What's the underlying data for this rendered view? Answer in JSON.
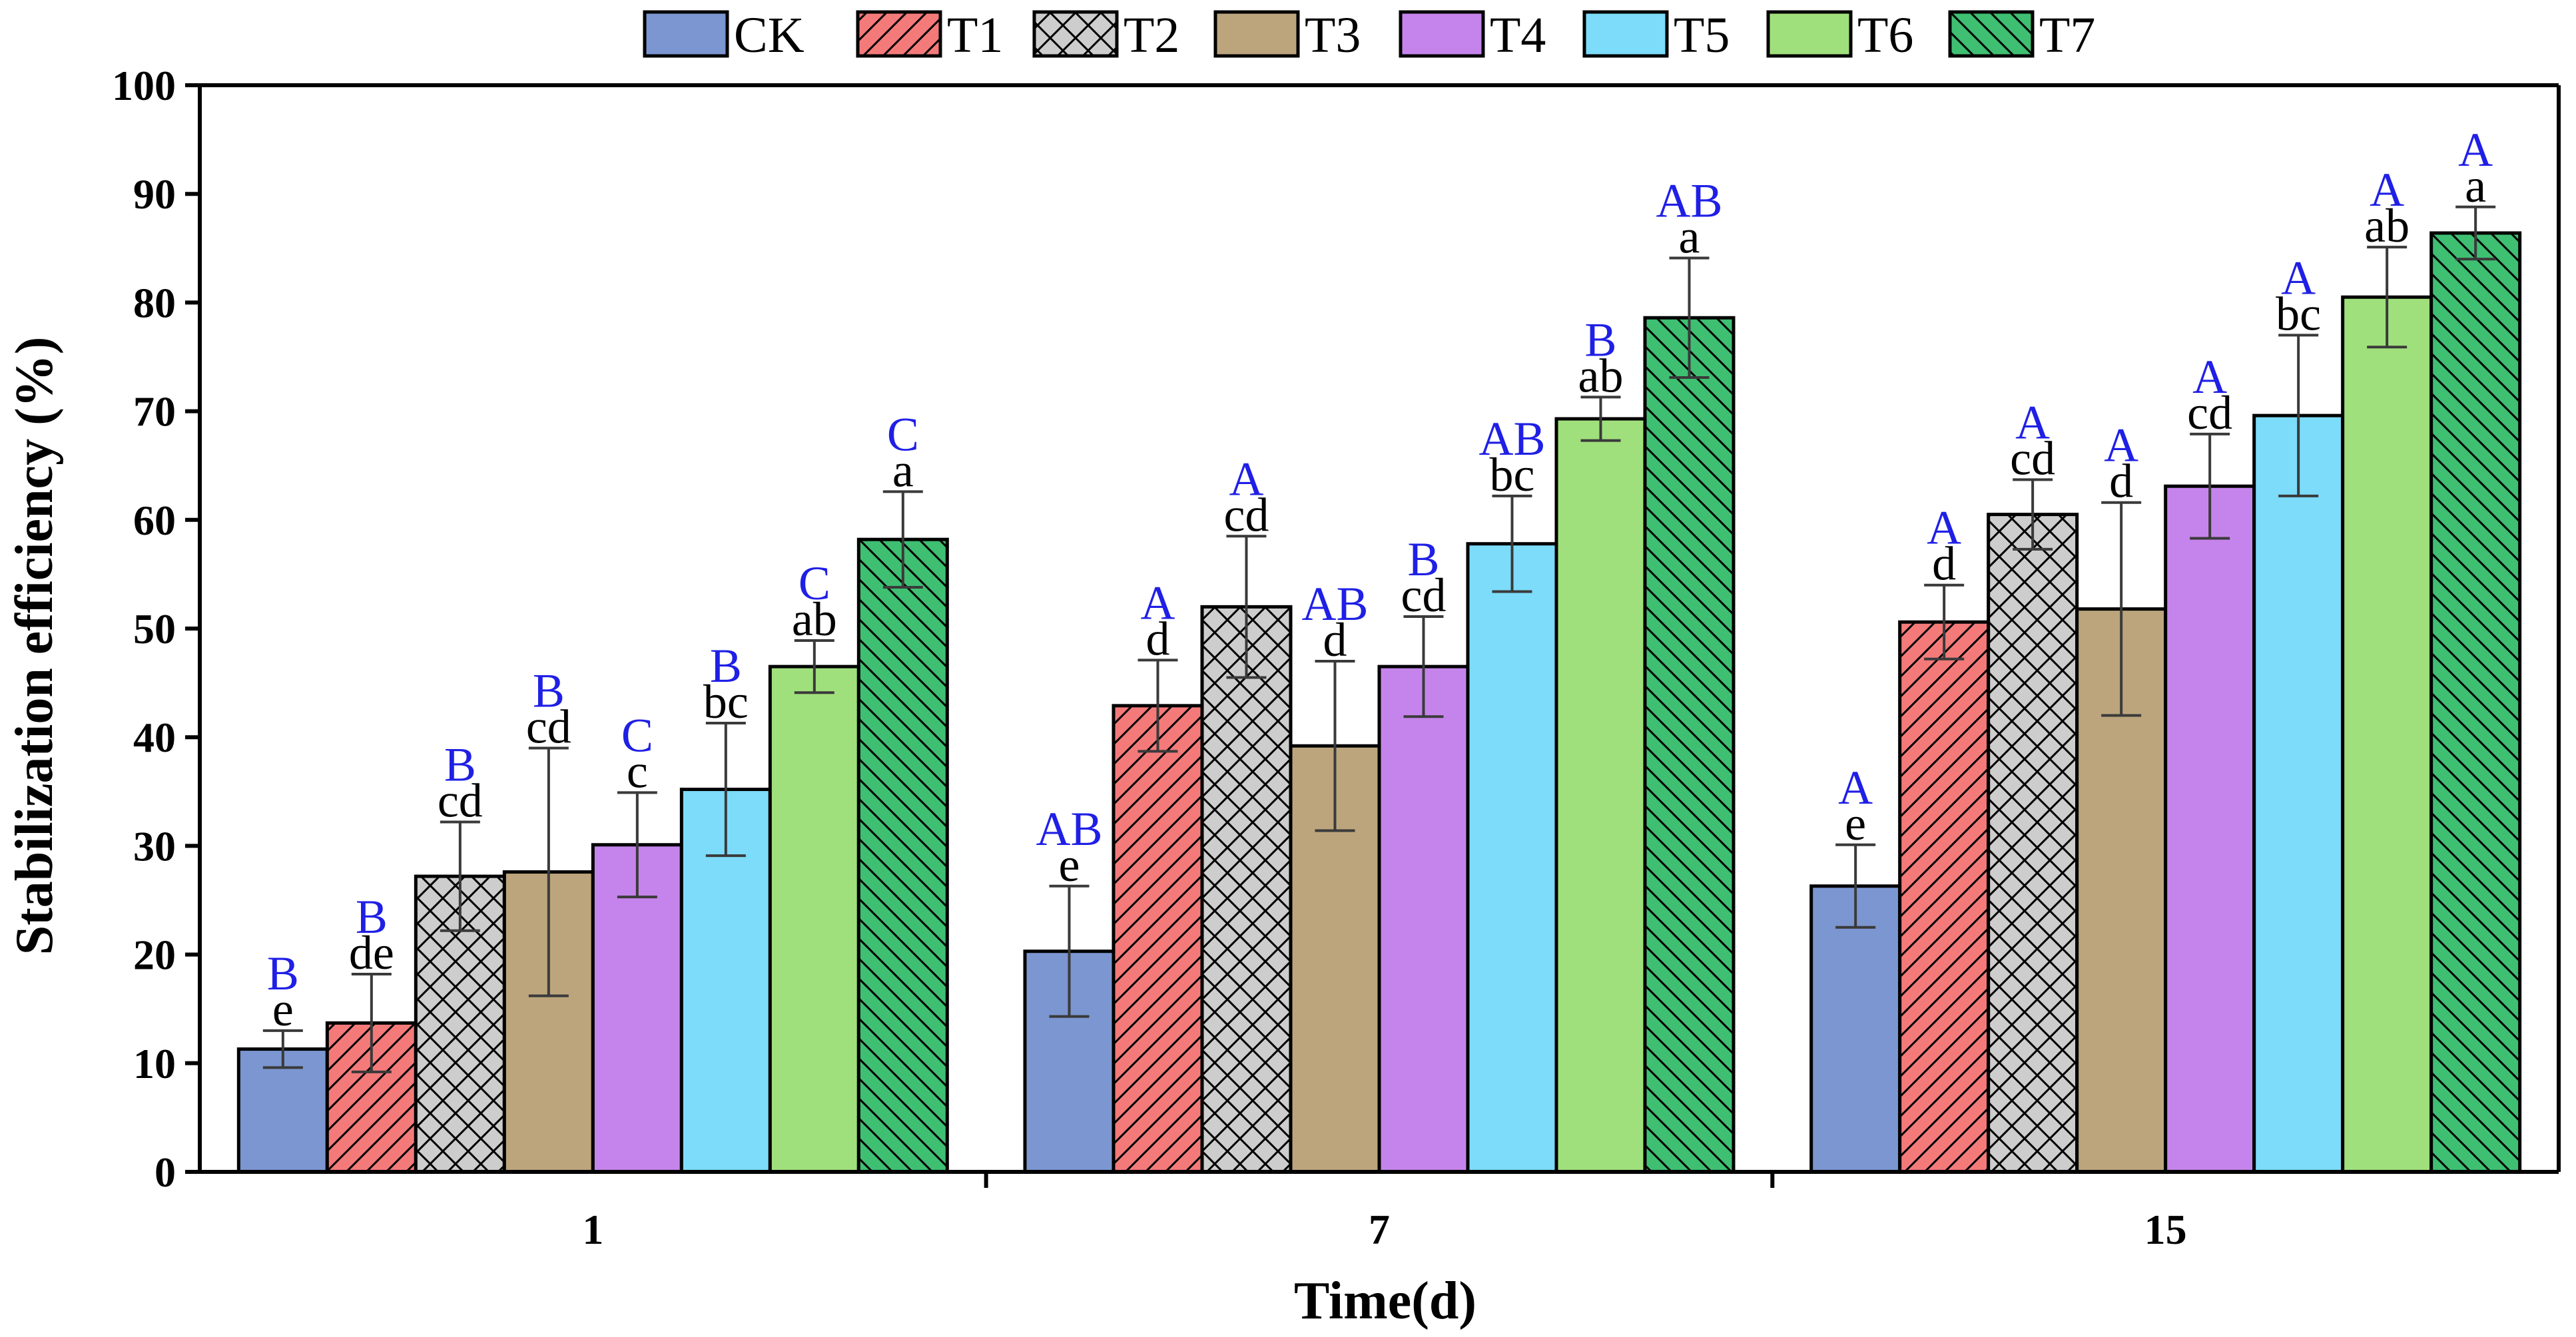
{
  "chart_data": {
    "type": "bar",
    "title": "",
    "xlabel": "Time(d)",
    "ylabel": "Stabilization efficiency (%)",
    "ylim": [
      0,
      100
    ],
    "yticks": [
      "0",
      "10",
      "20",
      "30",
      "40",
      "50",
      "60",
      "70",
      "80",
      "90",
      "100"
    ],
    "categories": [
      "1",
      "7",
      "15"
    ],
    "legend_position": "top",
    "series": [
      {
        "name": "CK",
        "color": "#7b96d0",
        "pattern": "none",
        "values": [
          11.3,
          20.3,
          26.3
        ],
        "errors": [
          1.7,
          6.0,
          3.8
        ],
        "letters_lower": [
          "e",
          "e",
          "e"
        ],
        "letters_upper": [
          "B",
          "AB",
          "A"
        ]
      },
      {
        "name": "T1",
        "color": "#f47a7a",
        "pattern": "diag-right",
        "values": [
          13.7,
          42.9,
          50.6
        ],
        "errors": [
          4.5,
          4.2,
          3.4
        ],
        "letters_lower": [
          "de",
          "d",
          "d"
        ],
        "letters_upper": [
          "B",
          "A",
          "A"
        ]
      },
      {
        "name": "T2",
        "color": "#cdcdcd",
        "pattern": "crosshatch",
        "values": [
          27.2,
          52.0,
          60.5
        ],
        "errors": [
          5.0,
          6.5,
          3.2
        ],
        "letters_lower": [
          "cd",
          "cd",
          "cd"
        ],
        "letters_upper": [
          "B",
          "A",
          "A"
        ]
      },
      {
        "name": "T3",
        "color": "#bca57d",
        "pattern": "none",
        "values": [
          27.6,
          39.2,
          51.8
        ],
        "errors": [
          11.4,
          7.8,
          9.8
        ],
        "letters_lower": [
          "cd",
          "d",
          "d"
        ],
        "letters_upper": [
          "B",
          "AB",
          "A"
        ]
      },
      {
        "name": "T4",
        "color": "#c584eb",
        "pattern": "none",
        "values": [
          30.1,
          46.5,
          63.1
        ],
        "errors": [
          4.8,
          4.6,
          4.8
        ],
        "letters_lower": [
          "c",
          "cd",
          "cd"
        ],
        "letters_upper": [
          "C",
          "B",
          "A"
        ]
      },
      {
        "name": "T5",
        "color": "#7cdcf9",
        "pattern": "none",
        "values": [
          35.2,
          57.8,
          69.6
        ],
        "errors": [
          6.1,
          4.4,
          7.4
        ],
        "letters_lower": [
          "bc",
          "bc",
          "bc"
        ],
        "letters_upper": [
          "B",
          "AB",
          "A"
        ]
      },
      {
        "name": "T6",
        "color": "#a0e07c",
        "pattern": "none",
        "values": [
          46.5,
          69.3,
          80.5
        ],
        "errors": [
          2.4,
          2.0,
          4.6
        ],
        "letters_lower": [
          "ab",
          "ab",
          "ab"
        ],
        "letters_upper": [
          "C",
          "B",
          "A"
        ]
      },
      {
        "name": "T7",
        "color": "#3fbf72",
        "pattern": "diag-left",
        "values": [
          58.2,
          78.6,
          86.4
        ],
        "errors": [
          4.4,
          5.5,
          2.4
        ],
        "letters_lower": [
          "a",
          "a",
          "a"
        ],
        "letters_upper": [
          "C",
          "AB",
          "A"
        ]
      }
    ]
  }
}
